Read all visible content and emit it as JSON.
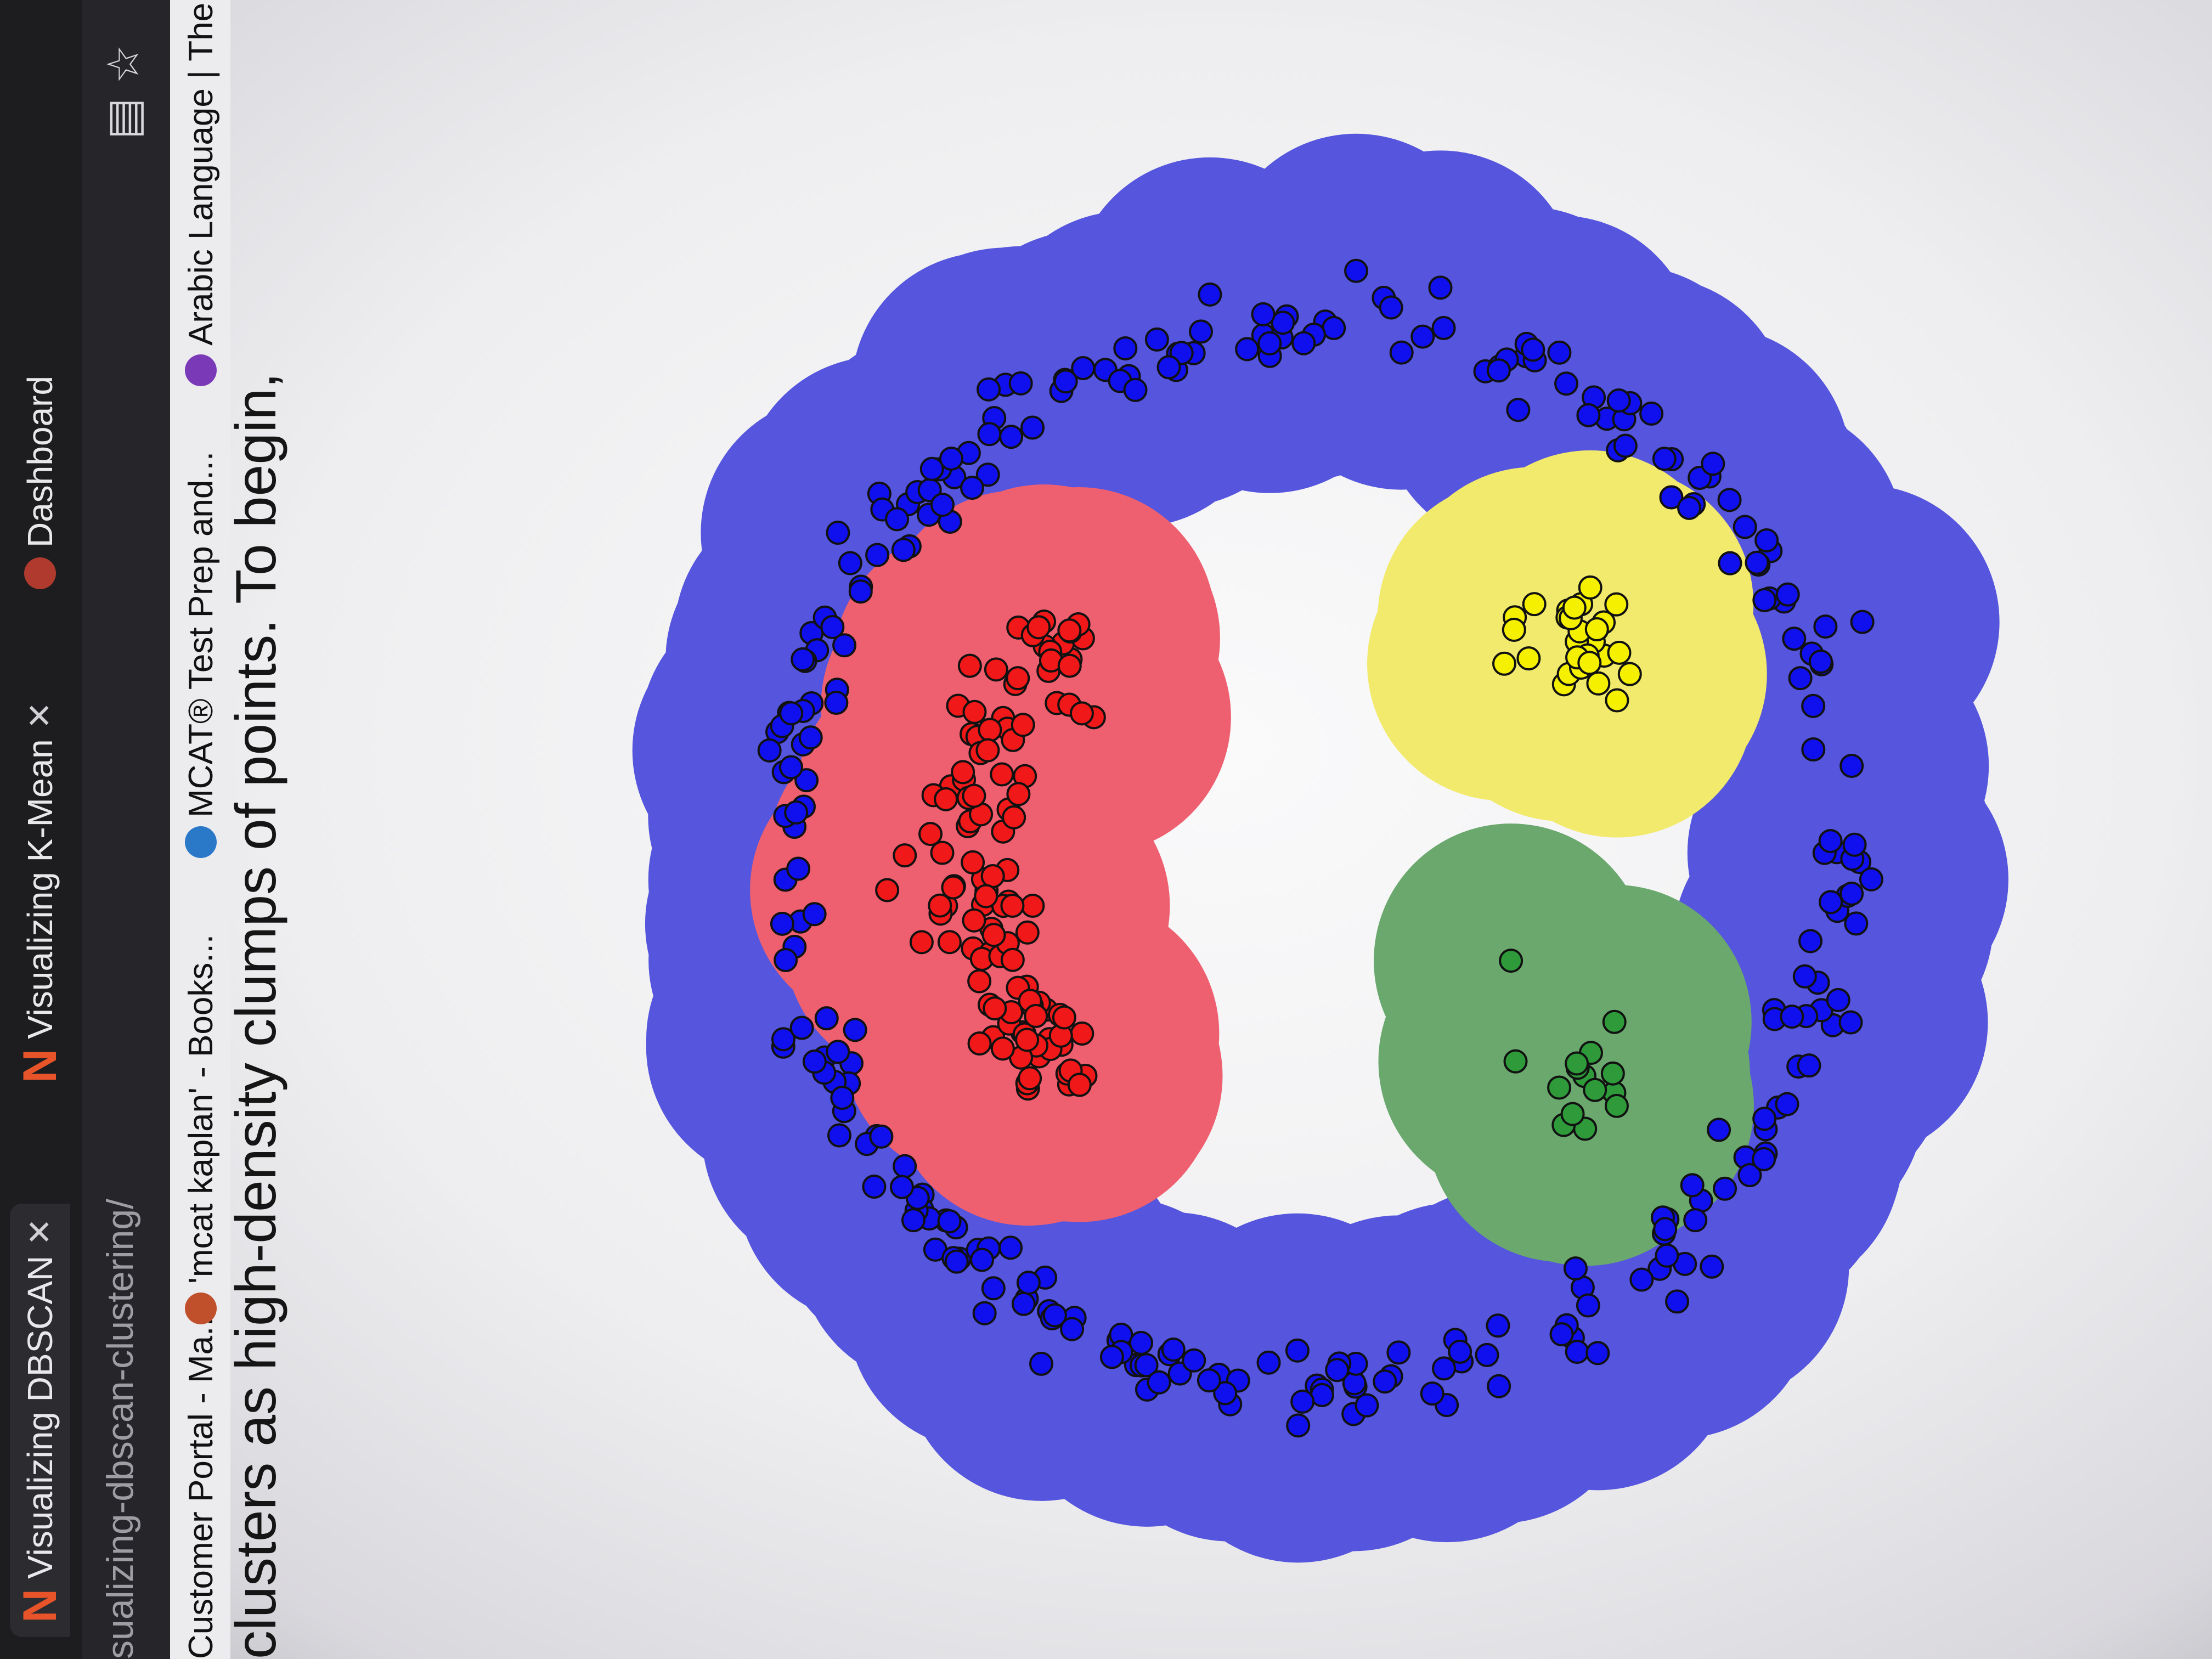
{
  "browser": {
    "tabs": [
      {
        "label": "Visualizing DBSCAN",
        "active": true
      },
      {
        "label": "Visualizing K-Mean",
        "active": false
      },
      {
        "label": "Dashboard",
        "active": false
      }
    ],
    "url": "sualizing-dbscan-clustering/",
    "bookmarks": [
      {
        "label": "Customer Portal - Ma...",
        "icon": "customer-portal-icon"
      },
      {
        "label": "'mcat kaplan' - Books...",
        "icon": "books-icon"
      },
      {
        "label": "MCAT® Test Prep and...",
        "icon": "kaplan-icon"
      },
      {
        "label": "Arabic Language | The...",
        "icon": "arabic-language-icon"
      }
    ]
  },
  "page": {
    "caption": "clusters as high-density clumps of points. To begin,"
  },
  "colors": {
    "blue_region": "#5555dd",
    "blue_point": "#1010ee",
    "yellow_region": "#f2ea6c",
    "yellow_point": "#f5f000",
    "green_region": "#6aa86e",
    "green_point": "#2e9a3a",
    "red_region": "#ee6070",
    "red_point": "#f01818",
    "tab_bar": "#1d1d20",
    "brand_n": "#e8542a"
  },
  "chart_data": {
    "type": "scatter",
    "xlim": [
      -1,
      1
    ],
    "ylim": [
      -1,
      1
    ],
    "grid": false,
    "series": [
      {
        "cluster": "blue ring",
        "color": "#1010ee",
        "region_color": "#5555dd",
        "approx_points": 300,
        "shape": "ring",
        "radius": 0.85
      },
      {
        "cluster": "yellow smiley-eye",
        "color": "#f5f000",
        "region_color": "#f2ea6c",
        "approx_points": 30,
        "center": [
          -0.34,
          0.42
        ]
      },
      {
        "cluster": "green smiley-eye",
        "color": "#2e9a3a",
        "region_color": "#6aa86e",
        "approx_points": 15,
        "center": [
          0.36,
          0.42
        ]
      },
      {
        "cluster": "red smiley-mouth",
        "color": "#f01818",
        "region_color": "#ee6070",
        "approx_points": 120,
        "shape": "arc",
        "center": [
          0.0,
          -0.26
        ]
      }
    ]
  }
}
